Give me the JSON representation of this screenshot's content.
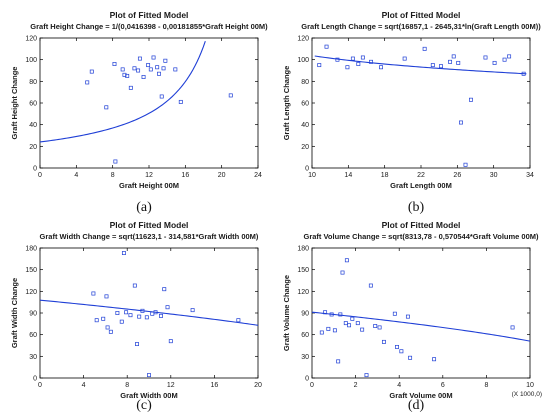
{
  "chart_data": [
    {
      "type": "scatter",
      "panel_label": "(a)",
      "title": "Plot of Fitted Model",
      "subtitle": "Graft Height Change = 1/(0,0416398 - 0,00181855*Graft Height 00M)",
      "xlabel": "Graft Height 00M",
      "ylabel": "Graft Height Change",
      "xlim": [
        0,
        24
      ],
      "ylim": [
        0,
        120
      ],
      "xticks": [
        0,
        4,
        8,
        12,
        16,
        20,
        24
      ],
      "yticks": [
        0,
        20,
        40,
        60,
        80,
        100,
        120
      ],
      "fit": {
        "kind": "reciprocal",
        "a": 0.0416398,
        "b": 0.00181855,
        "x_start": 0,
        "x_end": 18.2
      },
      "points": [
        {
          "x": 5.2,
          "y": 79
        },
        {
          "x": 5.7,
          "y": 89
        },
        {
          "x": 7.3,
          "y": 56
        },
        {
          "x": 8.2,
          "y": 96
        },
        {
          "x": 8.3,
          "y": 6
        },
        {
          "x": 9.1,
          "y": 91
        },
        {
          "x": 9.3,
          "y": 86
        },
        {
          "x": 9.6,
          "y": 85
        },
        {
          "x": 10.0,
          "y": 74
        },
        {
          "x": 10.4,
          "y": 92
        },
        {
          "x": 10.8,
          "y": 90
        },
        {
          "x": 11.0,
          "y": 101
        },
        {
          "x": 11.4,
          "y": 84
        },
        {
          "x": 11.9,
          "y": 95
        },
        {
          "x": 12.2,
          "y": 91
        },
        {
          "x": 12.5,
          "y": 102
        },
        {
          "x": 12.9,
          "y": 93
        },
        {
          "x": 13.1,
          "y": 87
        },
        {
          "x": 13.4,
          "y": 66
        },
        {
          "x": 13.6,
          "y": 92
        },
        {
          "x": 13.8,
          "y": 99
        },
        {
          "x": 14.9,
          "y": 91
        },
        {
          "x": 15.5,
          "y": 61
        },
        {
          "x": 21.0,
          "y": 67
        }
      ]
    },
    {
      "type": "scatter",
      "panel_label": "(b)",
      "title": "Plot of Fitted Model",
      "subtitle": "Graft Length Change = sqrt(16857,1 - 2645,31*ln(Graft Length 00M))",
      "xlabel": "Graft Length 00M",
      "ylabel": "Graft Length Change",
      "xlim": [
        10,
        34
      ],
      "ylim": [
        0,
        120
      ],
      "xticks": [
        10,
        14,
        18,
        22,
        26,
        30,
        34
      ],
      "yticks": [
        0,
        20,
        40,
        60,
        80,
        100,
        120
      ],
      "fit": {
        "kind": "sqrt-log",
        "a": 16857.1,
        "b": 2645.31,
        "x_start": 10.3,
        "x_end": 33.6
      },
      "points": [
        {
          "x": 10.8,
          "y": 95
        },
        {
          "x": 11.6,
          "y": 112
        },
        {
          "x": 12.8,
          "y": 100
        },
        {
          "x": 13.9,
          "y": 93
        },
        {
          "x": 14.5,
          "y": 101
        },
        {
          "x": 15.1,
          "y": 96
        },
        {
          "x": 15.6,
          "y": 102
        },
        {
          "x": 16.5,
          "y": 98
        },
        {
          "x": 17.6,
          "y": 93
        },
        {
          "x": 20.2,
          "y": 101
        },
        {
          "x": 22.4,
          "y": 110
        },
        {
          "x": 23.3,
          "y": 95
        },
        {
          "x": 24.2,
          "y": 94
        },
        {
          "x": 25.2,
          "y": 98
        },
        {
          "x": 25.6,
          "y": 103
        },
        {
          "x": 26.1,
          "y": 97
        },
        {
          "x": 26.4,
          "y": 42
        },
        {
          "x": 26.9,
          "y": 3
        },
        {
          "x": 27.5,
          "y": 63
        },
        {
          "x": 29.1,
          "y": 102
        },
        {
          "x": 30.1,
          "y": 97
        },
        {
          "x": 31.2,
          "y": 100
        },
        {
          "x": 31.7,
          "y": 103
        },
        {
          "x": 33.3,
          "y": 87
        }
      ]
    },
    {
      "type": "scatter",
      "panel_label": "(c)",
      "title": "Plot of Fitted Model",
      "subtitle": "Graft Width Change = sqrt(11623,1 - 314,581*Graft Width 00M)",
      "xlabel": "Graft Width 00M",
      "ylabel": "Graft Width Change",
      "xlim": [
        0,
        20
      ],
      "ylim": [
        0,
        180
      ],
      "xticks": [
        0,
        4,
        8,
        12,
        16,
        20
      ],
      "yticks": [
        0,
        30,
        60,
        90,
        120,
        150,
        180
      ],
      "fit": {
        "kind": "sqrt-linear",
        "a": 11623.1,
        "b": 314.581,
        "x_start": 0,
        "x_end": 20
      },
      "points": [
        {
          "x": 4.9,
          "y": 117
        },
        {
          "x": 5.2,
          "y": 80
        },
        {
          "x": 5.8,
          "y": 82
        },
        {
          "x": 6.1,
          "y": 113
        },
        {
          "x": 6.2,
          "y": 70
        },
        {
          "x": 6.5,
          "y": 64
        },
        {
          "x": 7.1,
          "y": 90
        },
        {
          "x": 7.5,
          "y": 78
        },
        {
          "x": 7.7,
          "y": 173
        },
        {
          "x": 7.9,
          "y": 91
        },
        {
          "x": 8.3,
          "y": 87
        },
        {
          "x": 8.7,
          "y": 128
        },
        {
          "x": 8.9,
          "y": 47
        },
        {
          "x": 9.1,
          "y": 85
        },
        {
          "x": 9.4,
          "y": 93
        },
        {
          "x": 9.8,
          "y": 84
        },
        {
          "x": 10.0,
          "y": 4
        },
        {
          "x": 10.3,
          "y": 89
        },
        {
          "x": 10.6,
          "y": 91
        },
        {
          "x": 11.1,
          "y": 86
        },
        {
          "x": 11.4,
          "y": 123
        },
        {
          "x": 11.7,
          "y": 98
        },
        {
          "x": 12.0,
          "y": 51
        },
        {
          "x": 14.0,
          "y": 94
        },
        {
          "x": 18.2,
          "y": 80
        }
      ]
    },
    {
      "type": "scatter",
      "panel_label": "(d)",
      "title": "Plot of Fitted Model",
      "subtitle": "Graft Volume Change = sqrt(8313,78 - 0,570544*Graft Volume 00M)",
      "xlabel": "Graft Volume 00M",
      "ylabel": "Graft Volume Change",
      "x_scale_note": "(X 1000,0)",
      "xlim": [
        0,
        10
      ],
      "ylim": [
        0,
        180
      ],
      "xticks": [
        0,
        2,
        4,
        6,
        8,
        10
      ],
      "yticks": [
        0,
        30,
        60,
        90,
        120,
        150,
        180
      ],
      "fit": {
        "kind": "sqrt-linear",
        "a": 8313.78,
        "b": 570.544,
        "x_start": 0,
        "x_end": 10
      },
      "points": [
        {
          "x": 0.45,
          "y": 63
        },
        {
          "x": 0.6,
          "y": 91
        },
        {
          "x": 0.75,
          "y": 68
        },
        {
          "x": 0.9,
          "y": 88
        },
        {
          "x": 1.05,
          "y": 66
        },
        {
          "x": 1.2,
          "y": 23
        },
        {
          "x": 1.3,
          "y": 88
        },
        {
          "x": 1.4,
          "y": 146
        },
        {
          "x": 1.55,
          "y": 76
        },
        {
          "x": 1.6,
          "y": 163
        },
        {
          "x": 1.7,
          "y": 73
        },
        {
          "x": 1.85,
          "y": 82
        },
        {
          "x": 2.1,
          "y": 76
        },
        {
          "x": 2.3,
          "y": 67
        },
        {
          "x": 2.5,
          "y": 4
        },
        {
          "x": 2.7,
          "y": 128
        },
        {
          "x": 2.9,
          "y": 72
        },
        {
          "x": 3.1,
          "y": 70
        },
        {
          "x": 3.3,
          "y": 50
        },
        {
          "x": 3.8,
          "y": 89
        },
        {
          "x": 3.9,
          "y": 43
        },
        {
          "x": 4.1,
          "y": 37
        },
        {
          "x": 4.4,
          "y": 85
        },
        {
          "x": 4.5,
          "y": 28
        },
        {
          "x": 5.6,
          "y": 26
        },
        {
          "x": 9.2,
          "y": 70
        }
      ]
    }
  ]
}
